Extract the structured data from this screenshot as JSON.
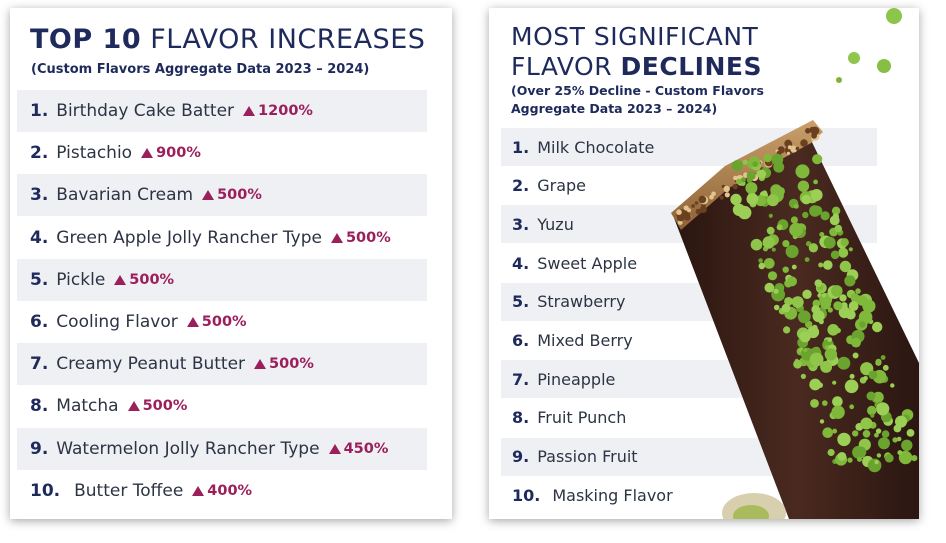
{
  "increases": {
    "title_bold": "TOP 10",
    "title_rest": " FLAVOR INCREASES",
    "subtitle": "(Custom Flavors Aggregate Data 2023 – 2024)",
    "items": [
      {
        "rank": "1.",
        "name": "Birthday Cake Batter",
        "change": "1200%"
      },
      {
        "rank": "2.",
        "name": "Pistachio",
        "change": "900%"
      },
      {
        "rank": "3.",
        "name": "Bavarian Cream",
        "change": "500%"
      },
      {
        "rank": "4.",
        "name": "Green Apple Jolly Rancher Type",
        "change": "500%"
      },
      {
        "rank": "5.",
        "name": "Pickle",
        "change": "500%"
      },
      {
        "rank": "6.",
        "name": "Cooling Flavor",
        "change": "500%"
      },
      {
        "rank": "7.",
        "name": "Creamy Peanut Butter",
        "change": "500%"
      },
      {
        "rank": "8.",
        "name": "Matcha",
        "change": "500%"
      },
      {
        "rank": "9.",
        "name": "Watermelon Jolly Rancher Type",
        "change": "450%"
      },
      {
        "rank": "10.",
        "name": "Butter Toffee",
        "change": "400%"
      }
    ]
  },
  "declines": {
    "title_line1": "MOST SIGNIFICANT",
    "title_line2_regular": "FLAVOR ",
    "title_line2_bold": "DECLINES",
    "subtitle_line1": "(Over 25% Decline - Custom Flavors",
    "subtitle_line2": "Aggregate Data 2023 – 2024)",
    "items": [
      {
        "rank": "1.",
        "name": "Milk Chocolate"
      },
      {
        "rank": "2.",
        "name": "Grape"
      },
      {
        "rank": "3.",
        "name": "Yuzu"
      },
      {
        "rank": "4.",
        "name": "Sweet Apple"
      },
      {
        "rank": "5.",
        "name": "Strawberry"
      },
      {
        "rank": "6.",
        "name": "Mixed Berry"
      },
      {
        "rank": "7.",
        "name": "Pineapple"
      },
      {
        "rank": "8.",
        "name": "Fruit Punch"
      },
      {
        "rank": "9.",
        "name": "Passion Fruit"
      },
      {
        "rank": "10.",
        "name": "Masking Flavor"
      }
    ]
  },
  "colors": {
    "navy": "#1f2a5c",
    "accent": "#9b1f5b",
    "row_shade": "#eff0f4",
    "chocolate": "#3a1f17",
    "matcha": "#7fb83a"
  },
  "icons": {
    "increase_marker": "up-triangle-icon"
  }
}
